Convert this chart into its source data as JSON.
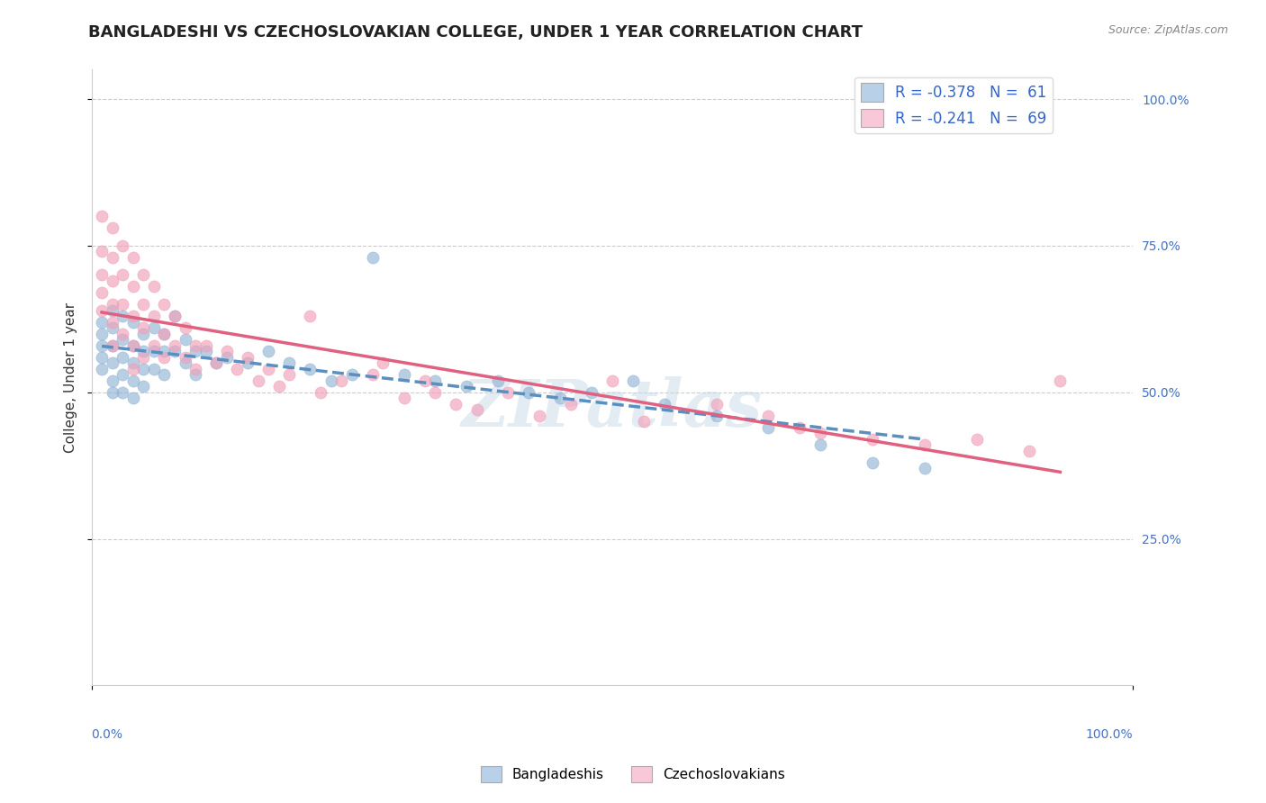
{
  "title": "BANGLADESHI VS CZECHOSLOVAKIAN COLLEGE, UNDER 1 YEAR CORRELATION CHART",
  "source": "Source: ZipAtlas.com",
  "ylabel": "College, Under 1 year",
  "xlim": [
    0.0,
    1.0
  ],
  "ylim": [
    0.0,
    1.05
  ],
  "ytick_labels": [
    "25.0%",
    "50.0%",
    "75.0%",
    "100.0%"
  ],
  "ytick_values": [
    0.25,
    0.5,
    0.75,
    1.0
  ],
  "legend_entry_1": "R = -0.378   N =  61",
  "legend_entry_2": "R = -0.241   N =  69",
  "bangladeshi_color": "#92b4d4",
  "czechoslovakian_color": "#f0a0b8",
  "bangladeshi_legend_color": "#b8d0e8",
  "czechoslovakian_legend_color": "#f8c8d8",
  "trendline_bangladeshi_color": "#5a8fc0",
  "trendline_czechoslovakian_color": "#e06080",
  "watermark": "ZIPatlas",
  "bangladeshi_scatter": [
    [
      0.01,
      0.62
    ],
    [
      0.01,
      0.6
    ],
    [
      0.01,
      0.58
    ],
    [
      0.01,
      0.56
    ],
    [
      0.01,
      0.54
    ],
    [
      0.02,
      0.64
    ],
    [
      0.02,
      0.61
    ],
    [
      0.02,
      0.58
    ],
    [
      0.02,
      0.55
    ],
    [
      0.02,
      0.52
    ],
    [
      0.02,
      0.5
    ],
    [
      0.03,
      0.63
    ],
    [
      0.03,
      0.59
    ],
    [
      0.03,
      0.56
    ],
    [
      0.03,
      0.53
    ],
    [
      0.03,
      0.5
    ],
    [
      0.04,
      0.62
    ],
    [
      0.04,
      0.58
    ],
    [
      0.04,
      0.55
    ],
    [
      0.04,
      0.52
    ],
    [
      0.04,
      0.49
    ],
    [
      0.05,
      0.6
    ],
    [
      0.05,
      0.57
    ],
    [
      0.05,
      0.54
    ],
    [
      0.05,
      0.51
    ],
    [
      0.06,
      0.61
    ],
    [
      0.06,
      0.57
    ],
    [
      0.06,
      0.54
    ],
    [
      0.07,
      0.6
    ],
    [
      0.07,
      0.57
    ],
    [
      0.07,
      0.53
    ],
    [
      0.08,
      0.63
    ],
    [
      0.08,
      0.57
    ],
    [
      0.09,
      0.59
    ],
    [
      0.09,
      0.55
    ],
    [
      0.1,
      0.57
    ],
    [
      0.1,
      0.53
    ],
    [
      0.11,
      0.57
    ],
    [
      0.12,
      0.55
    ],
    [
      0.13,
      0.56
    ],
    [
      0.15,
      0.55
    ],
    [
      0.17,
      0.57
    ],
    [
      0.19,
      0.55
    ],
    [
      0.21,
      0.54
    ],
    [
      0.23,
      0.52
    ],
    [
      0.25,
      0.53
    ],
    [
      0.27,
      0.73
    ],
    [
      0.3,
      0.53
    ],
    [
      0.33,
      0.52
    ],
    [
      0.36,
      0.51
    ],
    [
      0.39,
      0.52
    ],
    [
      0.42,
      0.5
    ],
    [
      0.45,
      0.49
    ],
    [
      0.48,
      0.5
    ],
    [
      0.52,
      0.52
    ],
    [
      0.55,
      0.48
    ],
    [
      0.6,
      0.46
    ],
    [
      0.65,
      0.44
    ],
    [
      0.7,
      0.41
    ],
    [
      0.75,
      0.38
    ],
    [
      0.8,
      0.37
    ]
  ],
  "czechoslovakian_scatter": [
    [
      0.01,
      0.8
    ],
    [
      0.01,
      0.74
    ],
    [
      0.01,
      0.7
    ],
    [
      0.01,
      0.67
    ],
    [
      0.01,
      0.64
    ],
    [
      0.02,
      0.78
    ],
    [
      0.02,
      0.73
    ],
    [
      0.02,
      0.69
    ],
    [
      0.02,
      0.65
    ],
    [
      0.02,
      0.62
    ],
    [
      0.02,
      0.58
    ],
    [
      0.03,
      0.75
    ],
    [
      0.03,
      0.7
    ],
    [
      0.03,
      0.65
    ],
    [
      0.03,
      0.6
    ],
    [
      0.04,
      0.73
    ],
    [
      0.04,
      0.68
    ],
    [
      0.04,
      0.63
    ],
    [
      0.04,
      0.58
    ],
    [
      0.04,
      0.54
    ],
    [
      0.05,
      0.7
    ],
    [
      0.05,
      0.65
    ],
    [
      0.05,
      0.61
    ],
    [
      0.05,
      0.56
    ],
    [
      0.06,
      0.68
    ],
    [
      0.06,
      0.63
    ],
    [
      0.06,
      0.58
    ],
    [
      0.07,
      0.65
    ],
    [
      0.07,
      0.6
    ],
    [
      0.07,
      0.56
    ],
    [
      0.08,
      0.63
    ],
    [
      0.08,
      0.58
    ],
    [
      0.09,
      0.61
    ],
    [
      0.09,
      0.56
    ],
    [
      0.1,
      0.58
    ],
    [
      0.1,
      0.54
    ],
    [
      0.11,
      0.58
    ],
    [
      0.12,
      0.55
    ],
    [
      0.13,
      0.57
    ],
    [
      0.14,
      0.54
    ],
    [
      0.15,
      0.56
    ],
    [
      0.16,
      0.52
    ],
    [
      0.17,
      0.54
    ],
    [
      0.18,
      0.51
    ],
    [
      0.19,
      0.53
    ],
    [
      0.21,
      0.63
    ],
    [
      0.22,
      0.5
    ],
    [
      0.24,
      0.52
    ],
    [
      0.27,
      0.53
    ],
    [
      0.28,
      0.55
    ],
    [
      0.3,
      0.49
    ],
    [
      0.32,
      0.52
    ],
    [
      0.33,
      0.5
    ],
    [
      0.35,
      0.48
    ],
    [
      0.37,
      0.47
    ],
    [
      0.4,
      0.5
    ],
    [
      0.43,
      0.46
    ],
    [
      0.46,
      0.48
    ],
    [
      0.5,
      0.52
    ],
    [
      0.53,
      0.45
    ],
    [
      0.6,
      0.48
    ],
    [
      0.65,
      0.46
    ],
    [
      0.68,
      0.44
    ],
    [
      0.7,
      0.43
    ],
    [
      0.75,
      0.42
    ],
    [
      0.8,
      0.41
    ],
    [
      0.85,
      0.42
    ],
    [
      0.9,
      0.4
    ],
    [
      0.93,
      0.52
    ]
  ],
  "background_color": "#ffffff",
  "grid_color": "#cccccc",
  "title_fontsize": 13,
  "axis_label_fontsize": 11,
  "tick_fontsize": 10,
  "legend_fontsize": 12
}
